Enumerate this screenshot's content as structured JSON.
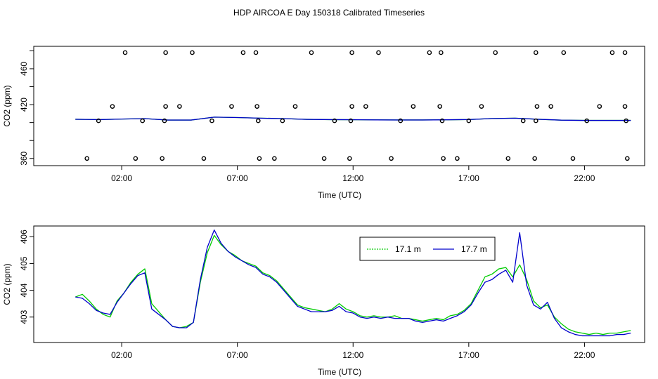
{
  "page": {
    "title": "HDP AIRCOA E  Day 150318  Calibrated Timeseries"
  },
  "colors": {
    "green": "#00cc00",
    "blue": "#0000cc",
    "axis": "#000000"
  },
  "chart_data": [
    {
      "type": "scatter",
      "name": "top-panel",
      "xlabel": "Time (UTC)",
      "ylabel": "CO2 (ppm)",
      "xlim": [
        -1.8,
        24.6
      ],
      "ylim": [
        352,
        485
      ],
      "x_ticks": [
        {
          "value": 2,
          "label": "02:00"
        },
        {
          "value": 7,
          "label": "07:00"
        },
        {
          "value": 12,
          "label": "12:00"
        },
        {
          "value": 17,
          "label": "17:00"
        },
        {
          "value": 22,
          "label": "22:00"
        }
      ],
      "y_ticks": [
        {
          "value": 360,
          "label": "360"
        },
        {
          "value": 380,
          "label": ""
        },
        {
          "value": 400,
          "label": ""
        },
        {
          "value": 420,
          "label": "420"
        },
        {
          "value": 440,
          "label": ""
        },
        {
          "value": 460,
          "label": "460"
        },
        {
          "value": 480,
          "label": ""
        }
      ],
      "points": [
        [
          2.15,
          478
        ],
        [
          3.9,
          478
        ],
        [
          5.05,
          478
        ],
        [
          7.25,
          478
        ],
        [
          7.8,
          478
        ],
        [
          10.2,
          478
        ],
        [
          11.95,
          478
        ],
        [
          13.1,
          478
        ],
        [
          15.3,
          478
        ],
        [
          15.8,
          478
        ],
        [
          18.15,
          478
        ],
        [
          19.9,
          478
        ],
        [
          21.1,
          478
        ],
        [
          23.2,
          478
        ],
        [
          23.75,
          478
        ],
        [
          1.6,
          418
        ],
        [
          3.9,
          418
        ],
        [
          4.5,
          418
        ],
        [
          6.75,
          418
        ],
        [
          7.85,
          418
        ],
        [
          9.5,
          418
        ],
        [
          11.95,
          418
        ],
        [
          12.55,
          418
        ],
        [
          14.6,
          418
        ],
        [
          15.75,
          418
        ],
        [
          17.55,
          418
        ],
        [
          19.95,
          418
        ],
        [
          20.55,
          418
        ],
        [
          22.65,
          418
        ],
        [
          23.75,
          418
        ],
        [
          1.0,
          402
        ],
        [
          2.9,
          402
        ],
        [
          3.85,
          402
        ],
        [
          5.9,
          402
        ],
        [
          7.9,
          402
        ],
        [
          8.95,
          402
        ],
        [
          11.2,
          402
        ],
        [
          11.9,
          402
        ],
        [
          14.05,
          402
        ],
        [
          15.85,
          402
        ],
        [
          17.0,
          402
        ],
        [
          19.35,
          402
        ],
        [
          19.9,
          402
        ],
        [
          22.1,
          402
        ],
        [
          23.8,
          402
        ],
        [
          0.5,
          360
        ],
        [
          2.6,
          360
        ],
        [
          3.75,
          360
        ],
        [
          5.55,
          360
        ],
        [
          7.95,
          360
        ],
        [
          8.6,
          360
        ],
        [
          10.75,
          360
        ],
        [
          11.85,
          360
        ],
        [
          13.65,
          360
        ],
        [
          15.9,
          360
        ],
        [
          16.5,
          360
        ],
        [
          18.7,
          360
        ],
        [
          19.85,
          360
        ],
        [
          21.5,
          360
        ],
        [
          23.85,
          360
        ]
      ],
      "series": [
        {
          "name": "",
          "color": "green",
          "x": [
            0,
            1,
            2,
            3,
            4,
            5,
            6,
            7,
            8,
            9,
            10,
            11,
            12,
            13,
            14,
            15,
            16,
            17,
            18,
            19,
            20,
            21,
            22,
            23,
            24
          ],
          "y": [
            403.7,
            403.3,
            403.9,
            404.4,
            402.8,
            402.8,
            406.1,
            405.6,
            404.9,
            404.4,
            403.6,
            403.3,
            403.2,
            403.0,
            402.9,
            402.9,
            403.1,
            403.4,
            404.5,
            404.9,
            403.7,
            402.7,
            402.4,
            402.4,
            402.4
          ]
        },
        {
          "name": "",
          "color": "blue",
          "x": [
            0,
            1,
            2,
            3,
            4,
            5,
            6,
            7,
            8,
            9,
            10,
            11,
            12,
            13,
            14,
            15,
            16,
            17,
            18,
            19,
            20,
            21,
            22,
            23,
            24
          ],
          "y": [
            403.7,
            403.3,
            403.9,
            404.4,
            402.8,
            402.8,
            406.1,
            405.6,
            404.9,
            404.4,
            403.6,
            403.3,
            403.2,
            403.0,
            402.9,
            402.9,
            403.1,
            403.4,
            404.5,
            404.9,
            403.7,
            402.7,
            402.4,
            402.4,
            402.4
          ]
        }
      ]
    },
    {
      "type": "line",
      "name": "bottom-panel",
      "xlabel": "Time (UTC)",
      "ylabel": "CO2 (ppm)",
      "xlim": [
        -1.8,
        24.6
      ],
      "ylim": [
        402.05,
        406.4
      ],
      "legend_position": "top-right",
      "x_ticks": [
        {
          "value": 2,
          "label": "02:00"
        },
        {
          "value": 7,
          "label": "07:00"
        },
        {
          "value": 12,
          "label": "12:00"
        },
        {
          "value": 17,
          "label": "17:00"
        },
        {
          "value": 22,
          "label": "22:00"
        }
      ],
      "y_ticks": [
        {
          "value": 403,
          "label": "403"
        },
        {
          "value": 404,
          "label": "404"
        },
        {
          "value": 405,
          "label": "405"
        },
        {
          "value": 406,
          "label": "406"
        }
      ],
      "series": [
        {
          "name": "17.1 m",
          "color": "green",
          "x": [
            0,
            0.3,
            0.6,
            0.9,
            1.2,
            1.5,
            1.8,
            2.1,
            2.4,
            2.7,
            3.0,
            3.3,
            3.6,
            3.9,
            4.2,
            4.5,
            4.8,
            5.1,
            5.4,
            5.7,
            6.0,
            6.3,
            6.6,
            6.9,
            7.2,
            7.5,
            7.8,
            8.1,
            8.4,
            8.7,
            9.0,
            9.3,
            9.6,
            9.9,
            10.2,
            10.5,
            10.8,
            11.1,
            11.4,
            11.7,
            12.0,
            12.3,
            12.6,
            12.9,
            13.2,
            13.5,
            13.8,
            14.1,
            14.4,
            14.7,
            15.0,
            15.3,
            15.6,
            15.9,
            16.2,
            16.5,
            16.8,
            17.1,
            17.4,
            17.7,
            18.0,
            18.3,
            18.6,
            18.9,
            19.2,
            19.5,
            19.8,
            20.1,
            20.4,
            20.7,
            21.0,
            21.3,
            21.6,
            21.9,
            22.2,
            22.5,
            22.8,
            23.1,
            23.4,
            23.7,
            24.0
          ],
          "y": [
            403.75,
            403.85,
            403.6,
            403.3,
            403.1,
            403.0,
            403.6,
            403.9,
            404.3,
            404.6,
            404.8,
            403.5,
            403.2,
            402.9,
            402.65,
            402.6,
            402.65,
            402.8,
            404.3,
            405.4,
            406.05,
            405.7,
            405.45,
            405.3,
            405.1,
            405.0,
            404.9,
            404.65,
            404.55,
            404.35,
            404.05,
            403.75,
            403.45,
            403.35,
            403.3,
            403.25,
            403.2,
            403.3,
            403.5,
            403.3,
            403.2,
            403.05,
            403.0,
            403.05,
            403.0,
            403.0,
            403.05,
            402.95,
            402.95,
            402.9,
            402.85,
            402.9,
            402.95,
            402.9,
            403.05,
            403.1,
            403.25,
            403.5,
            404.0,
            404.5,
            404.6,
            404.8,
            404.85,
            404.5,
            404.95,
            404.4,
            403.6,
            403.35,
            403.45,
            403.0,
            402.75,
            402.55,
            402.45,
            402.4,
            402.35,
            402.4,
            402.35,
            402.4,
            402.4,
            402.45,
            402.5
          ]
        },
        {
          "name": "17.7 m",
          "color": "blue",
          "x": [
            0,
            0.3,
            0.6,
            0.9,
            1.2,
            1.5,
            1.8,
            2.1,
            2.4,
            2.7,
            3.0,
            3.3,
            3.6,
            3.9,
            4.2,
            4.5,
            4.8,
            5.1,
            5.4,
            5.7,
            6.0,
            6.3,
            6.6,
            6.9,
            7.2,
            7.5,
            7.8,
            8.1,
            8.4,
            8.7,
            9.0,
            9.3,
            9.6,
            9.9,
            10.2,
            10.5,
            10.8,
            11.1,
            11.4,
            11.7,
            12.0,
            12.3,
            12.6,
            12.9,
            13.2,
            13.5,
            13.8,
            14.1,
            14.4,
            14.7,
            15.0,
            15.3,
            15.6,
            15.9,
            16.2,
            16.5,
            16.8,
            17.1,
            17.4,
            17.7,
            18.0,
            18.3,
            18.6,
            18.9,
            19.2,
            19.5,
            19.8,
            20.1,
            20.4,
            20.7,
            21.0,
            21.3,
            21.6,
            21.9,
            22.2,
            22.5,
            22.8,
            23.1,
            23.4,
            23.7,
            24.0
          ],
          "y": [
            403.75,
            403.7,
            403.5,
            403.25,
            403.15,
            403.1,
            403.55,
            403.9,
            404.25,
            404.55,
            404.65,
            403.3,
            403.1,
            402.9,
            402.65,
            402.6,
            402.6,
            402.8,
            404.4,
            405.6,
            406.25,
            405.75,
            405.45,
            405.25,
            405.1,
            404.95,
            404.85,
            404.6,
            404.5,
            404.3,
            404.0,
            403.7,
            403.4,
            403.3,
            403.2,
            403.2,
            403.2,
            403.25,
            403.4,
            403.2,
            403.15,
            403.0,
            402.95,
            403.0,
            402.95,
            403.0,
            402.95,
            402.95,
            402.95,
            402.85,
            402.8,
            402.85,
            402.9,
            402.85,
            402.95,
            403.05,
            403.2,
            403.45,
            403.9,
            404.3,
            404.4,
            404.6,
            404.75,
            404.3,
            406.15,
            404.2,
            403.45,
            403.3,
            403.55,
            402.95,
            402.6,
            402.45,
            402.35,
            402.3,
            402.3,
            402.3,
            402.3,
            402.3,
            402.35,
            402.35,
            402.4
          ]
        }
      ]
    }
  ]
}
